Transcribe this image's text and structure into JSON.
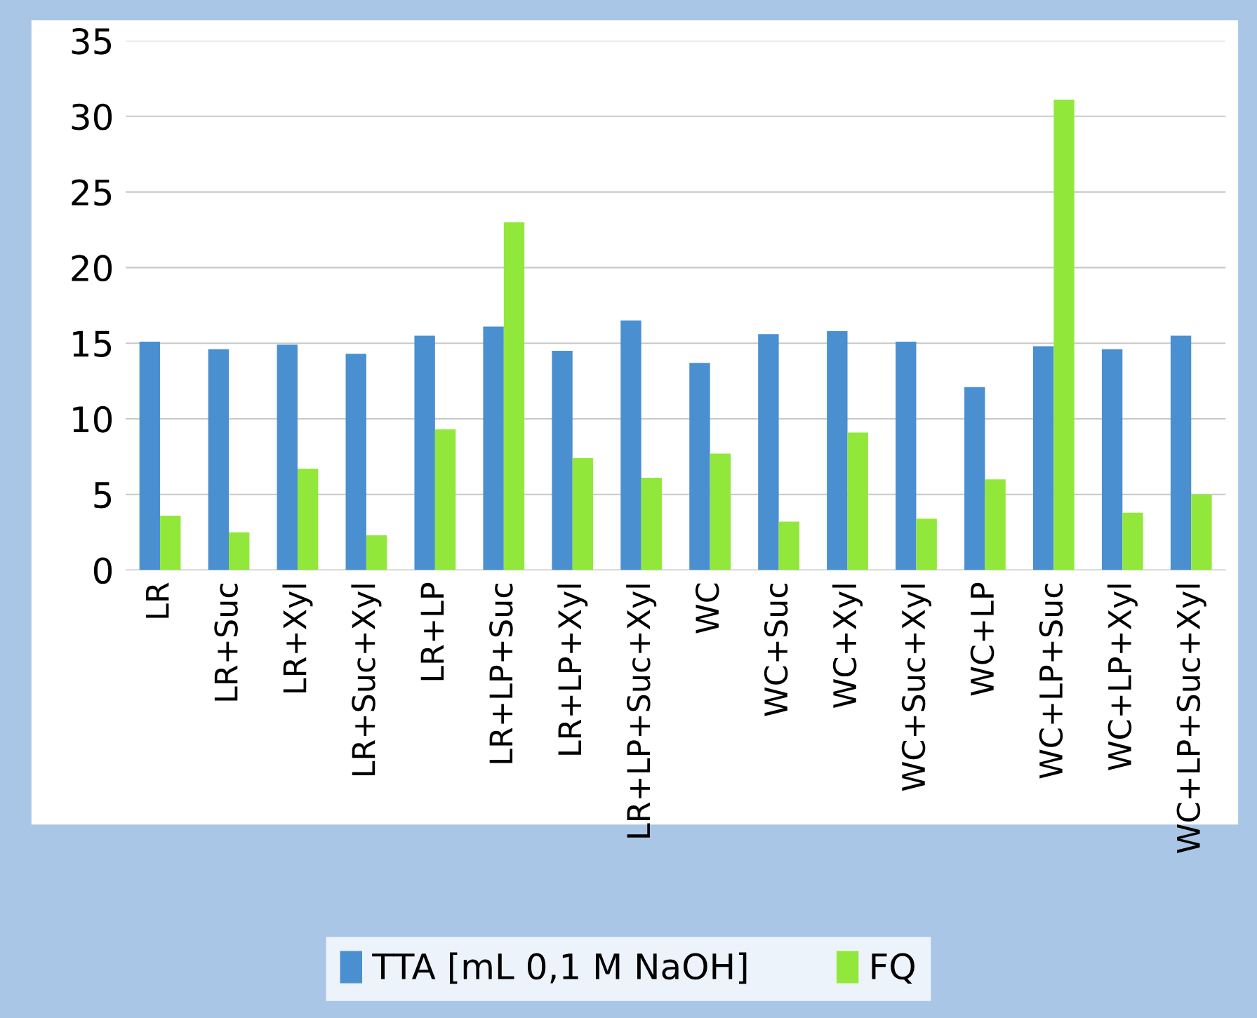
{
  "chart_data": {
    "type": "bar",
    "categories": [
      "LR",
      "LR+Suc",
      "LR+Xyl",
      "LR+Suc+Xyl",
      "LR+LP",
      "LR+LP+Suc",
      "LR+LP+Xyl",
      "LR+LP+Suc+Xyl",
      "WC",
      "WC+Suc",
      "WC+Xyl",
      "WC+Suc+Xyl",
      "WC+LP",
      "WC+LP+Suc",
      "WC+LP+Xyl",
      "WC+LP+Suc+Xyl"
    ],
    "series": [
      {
        "name": "TTA [mL 0,1 M NaOH]",
        "color": "#4a8fd0",
        "values": [
          15.1,
          14.6,
          14.9,
          14.3,
          15.5,
          16.1,
          14.5,
          16.5,
          13.7,
          15.6,
          15.8,
          15.1,
          12.1,
          14.8,
          14.6,
          15.5
        ]
      },
      {
        "name": "FQ",
        "color": "#92e83a",
        "values": [
          3.6,
          2.5,
          6.7,
          2.3,
          9.3,
          23.0,
          7.4,
          6.1,
          7.7,
          3.2,
          9.1,
          3.4,
          6.0,
          31.1,
          3.8,
          5.0
        ]
      }
    ],
    "ylim": [
      0,
      35
    ],
    "yticks": [
      0,
      5,
      10,
      15,
      20,
      25,
      30,
      35
    ],
    "grid": "y",
    "legend": "bottom"
  }
}
